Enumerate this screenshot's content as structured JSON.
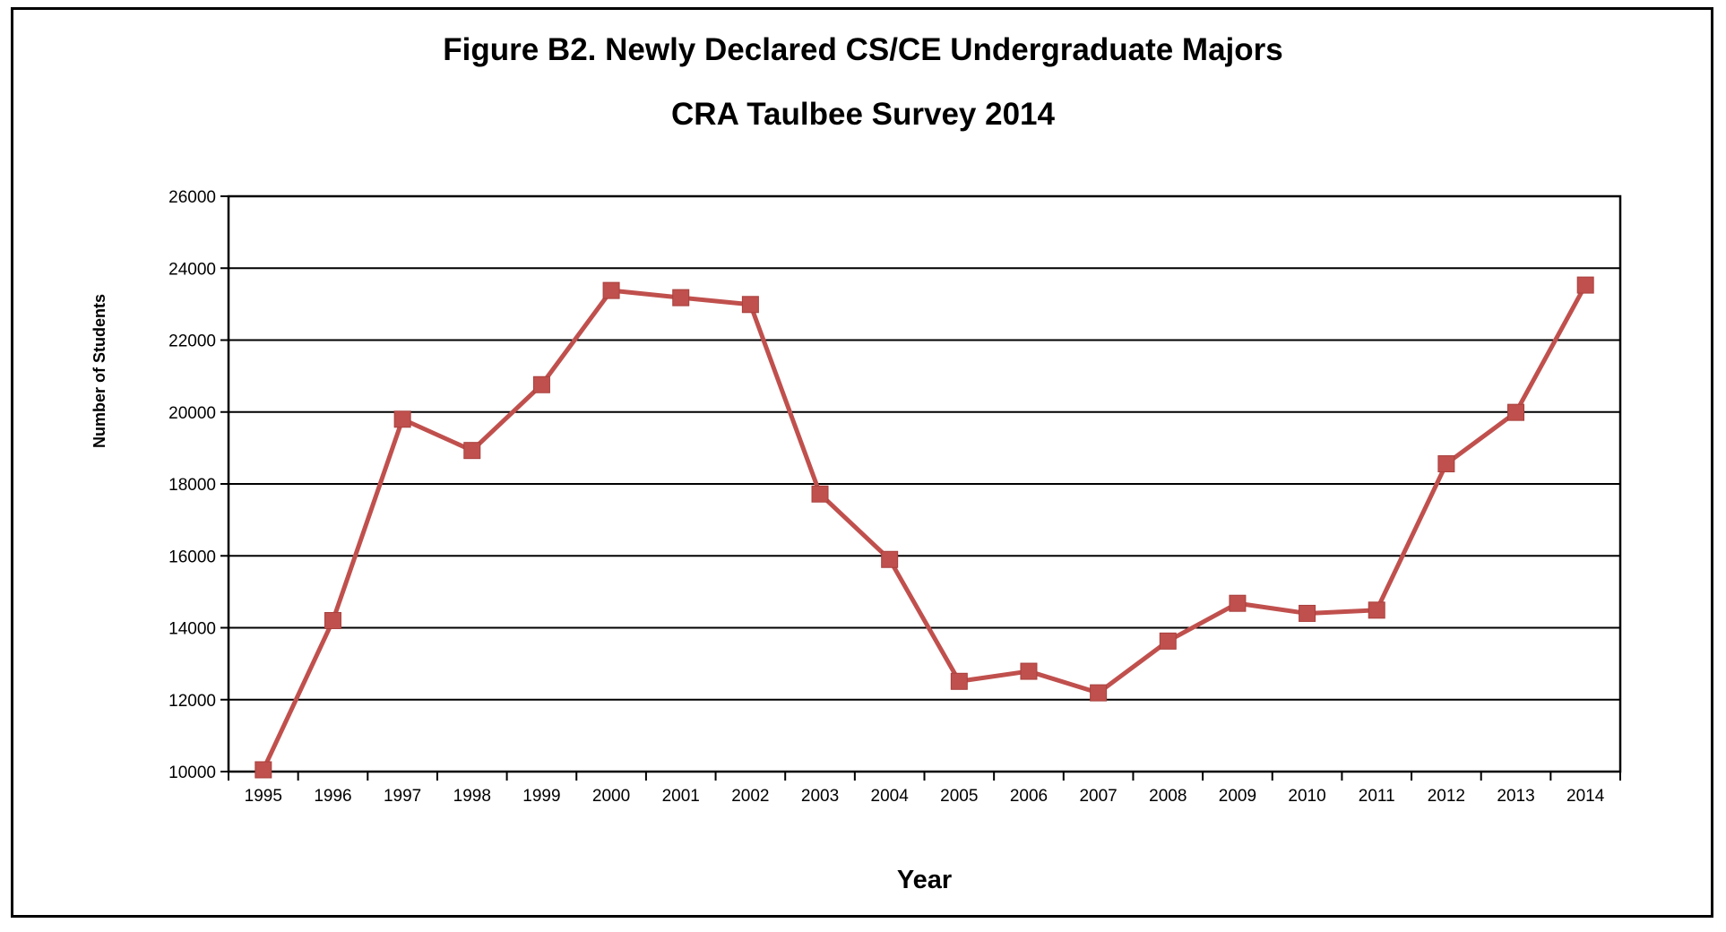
{
  "chart_data": {
    "type": "line",
    "title": "Figure B2. Newly Declared CS/CE Undergraduate Majors",
    "subtitle": "CRA Taulbee Survey 2014",
    "xlabel": "Year",
    "ylabel": "Number of Students",
    "ylim": [
      10000,
      26000
    ],
    "yticks": [
      "10000",
      "12000",
      "14000",
      "16000",
      "18000",
      "20000",
      "22000",
      "24000",
      "26000"
    ],
    "grid": true,
    "categories": [
      "1995",
      "1996",
      "1997",
      "1998",
      "1999",
      "2000",
      "2001",
      "2002",
      "2003",
      "2004",
      "2005",
      "2006",
      "2007",
      "2008",
      "2009",
      "2010",
      "2011",
      "2012",
      "2013",
      "2014"
    ],
    "series": [
      {
        "values": [
          10050,
          14200,
          19800,
          18930,
          20760,
          23380,
          23180,
          22990,
          17720,
          15900,
          12510,
          12790,
          12190,
          13630,
          14680,
          14400,
          14490,
          18560,
          19990,
          23530
        ],
        "color": "#c0504d",
        "marker": "square"
      }
    ]
  }
}
